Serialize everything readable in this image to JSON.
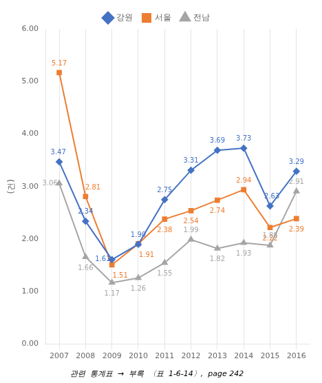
{
  "chart_data": {
    "type": "line",
    "subtitle": "관련  통계표  →  부록  〈표  1-6-14〉,  page 242",
    "y_label": "(건)",
    "categories": [
      "2007",
      "2008",
      "2009",
      "2010",
      "2011",
      "2012",
      "2013",
      "2014",
      "2015",
      "2016"
    ],
    "series": [
      {
        "name": "강원",
        "color": "#4472C4",
        "marker": "diamond",
        "values": [
          3.47,
          2.34,
          1.61,
          1.9,
          2.75,
          3.31,
          3.69,
          3.73,
          2.63,
          3.29
        ],
        "value_labels": [
          "3.47",
          "2.34",
          "1.61",
          "1.90",
          "2.75",
          "3.31",
          "3.69",
          "3.73",
          "2.63",
          "3.29"
        ]
      },
      {
        "name": "서울",
        "color": "#ED7D31",
        "marker": "square",
        "values": [
          5.17,
          2.81,
          1.51,
          1.91,
          2.38,
          2.54,
          2.74,
          2.94,
          2.22,
          2.39
        ],
        "value_labels": [
          "5.17",
          "2.81",
          "1.51",
          "1.91",
          "2.38",
          "2.54",
          "2.74",
          "2.94",
          "2.22",
          "2.39"
        ]
      },
      {
        "name": "전남",
        "color": "#A5A5A5",
        "marker": "triangle",
        "values": [
          3.06,
          1.66,
          1.17,
          1.26,
          1.55,
          1.99,
          1.82,
          1.93,
          1.88,
          2.91
        ],
        "value_labels": [
          "3.06",
          "1.66",
          "1.17",
          "1.26",
          "1.55",
          "1.99",
          "1.82",
          "1.93",
          "1.88",
          "2.91"
        ]
      }
    ],
    "ylim": [
      0.0,
      6.0
    ],
    "yticks": [
      {
        "value": 0,
        "label": "0.00"
      },
      {
        "value": 1,
        "label": "1.00"
      },
      {
        "value": 2,
        "label": "2.00"
      },
      {
        "value": 3,
        "label": "3.00"
      },
      {
        "value": 4,
        "label": "4.00"
      },
      {
        "value": 5,
        "label": "5.00"
      },
      {
        "value": 6,
        "label": "6.00"
      }
    ],
    "grid": "x",
    "legend": "top",
    "data_labels": true
  }
}
